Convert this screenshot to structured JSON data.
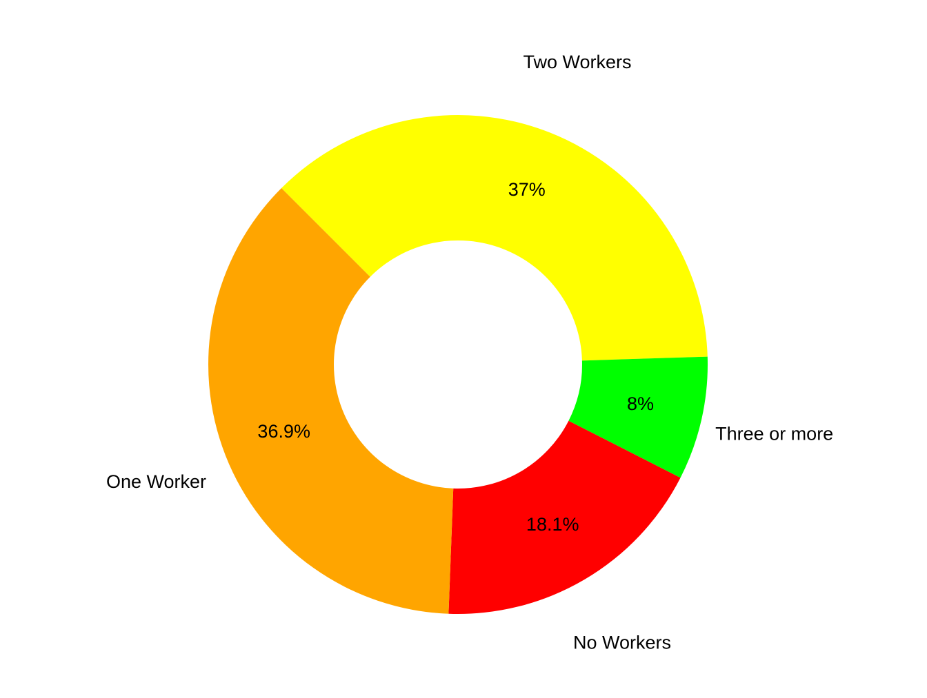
{
  "chart_data": {
    "type": "donut",
    "categories": [
      "Two Workers",
      "Three or more",
      "No Workers",
      "One Worker"
    ],
    "values": [
      37,
      8,
      18.1,
      36.9
    ],
    "value_labels": [
      "37%",
      "8%",
      "18.1%",
      "36.9%"
    ],
    "colors": [
      "#ffff00",
      "#00ff00",
      "#ff0000",
      "#ffa500"
    ]
  }
}
